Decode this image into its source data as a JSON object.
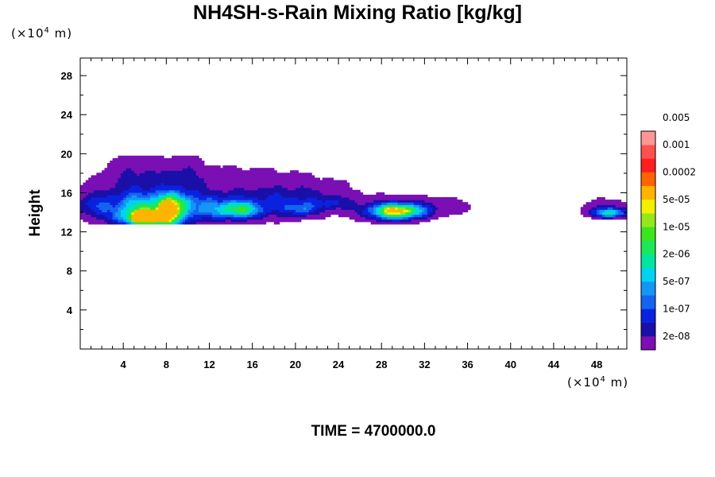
{
  "chart_data": {
    "type": "heatmap",
    "title": "NH4SH-s-Rain Mixing Ratio [kg/kg]",
    "xlabel": "",
    "ylabel": "Height",
    "x_unit_label": {
      "prefix": "(×10",
      "exp": "4",
      "suffix": " m)"
    },
    "y_unit_label": {
      "prefix": "(×10",
      "exp": "4",
      "suffix": " m)"
    },
    "xlim": [
      0,
      50.8
    ],
    "ylim": [
      0,
      29.8
    ],
    "xticks": [
      4,
      8,
      12,
      16,
      20,
      24,
      28,
      32,
      36,
      40,
      44,
      48
    ],
    "yticks": [
      4,
      8,
      12,
      16,
      20,
      24,
      28
    ],
    "colorbar": {
      "colors": [
        "#7a0fb4",
        "#1a0fa8",
        "#0a22e0",
        "#1464f0",
        "#1496f5",
        "#00d2f0",
        "#00e6a0",
        "#1ee65a",
        "#3ce61e",
        "#96e61e",
        "#f0f000",
        "#ffb400",
        "#ff6400",
        "#ff1e1e",
        "#ff5050",
        "#ff9696"
      ],
      "labels": [
        "2e-08",
        "1e-07",
        "5e-07",
        "2e-06",
        "1e-05",
        "5e-05",
        "0.0002",
        "0.001",
        "0.005"
      ]
    },
    "regions": [
      {
        "x_range": [
          0,
          25
        ],
        "y_range": [
          12.8,
          19.4
        ],
        "max_level": "0.001"
      },
      {
        "x_range": [
          26.5,
          36.5
        ],
        "y_range": [
          13.6,
          16.2
        ],
        "max_level": "5e-05"
      },
      {
        "x_range": [
          46.5,
          50.8
        ],
        "y_range": [
          13.4,
          15.8
        ],
        "max_level": "2e-06"
      }
    ]
  },
  "time_label": "TIME = 4700000.0"
}
